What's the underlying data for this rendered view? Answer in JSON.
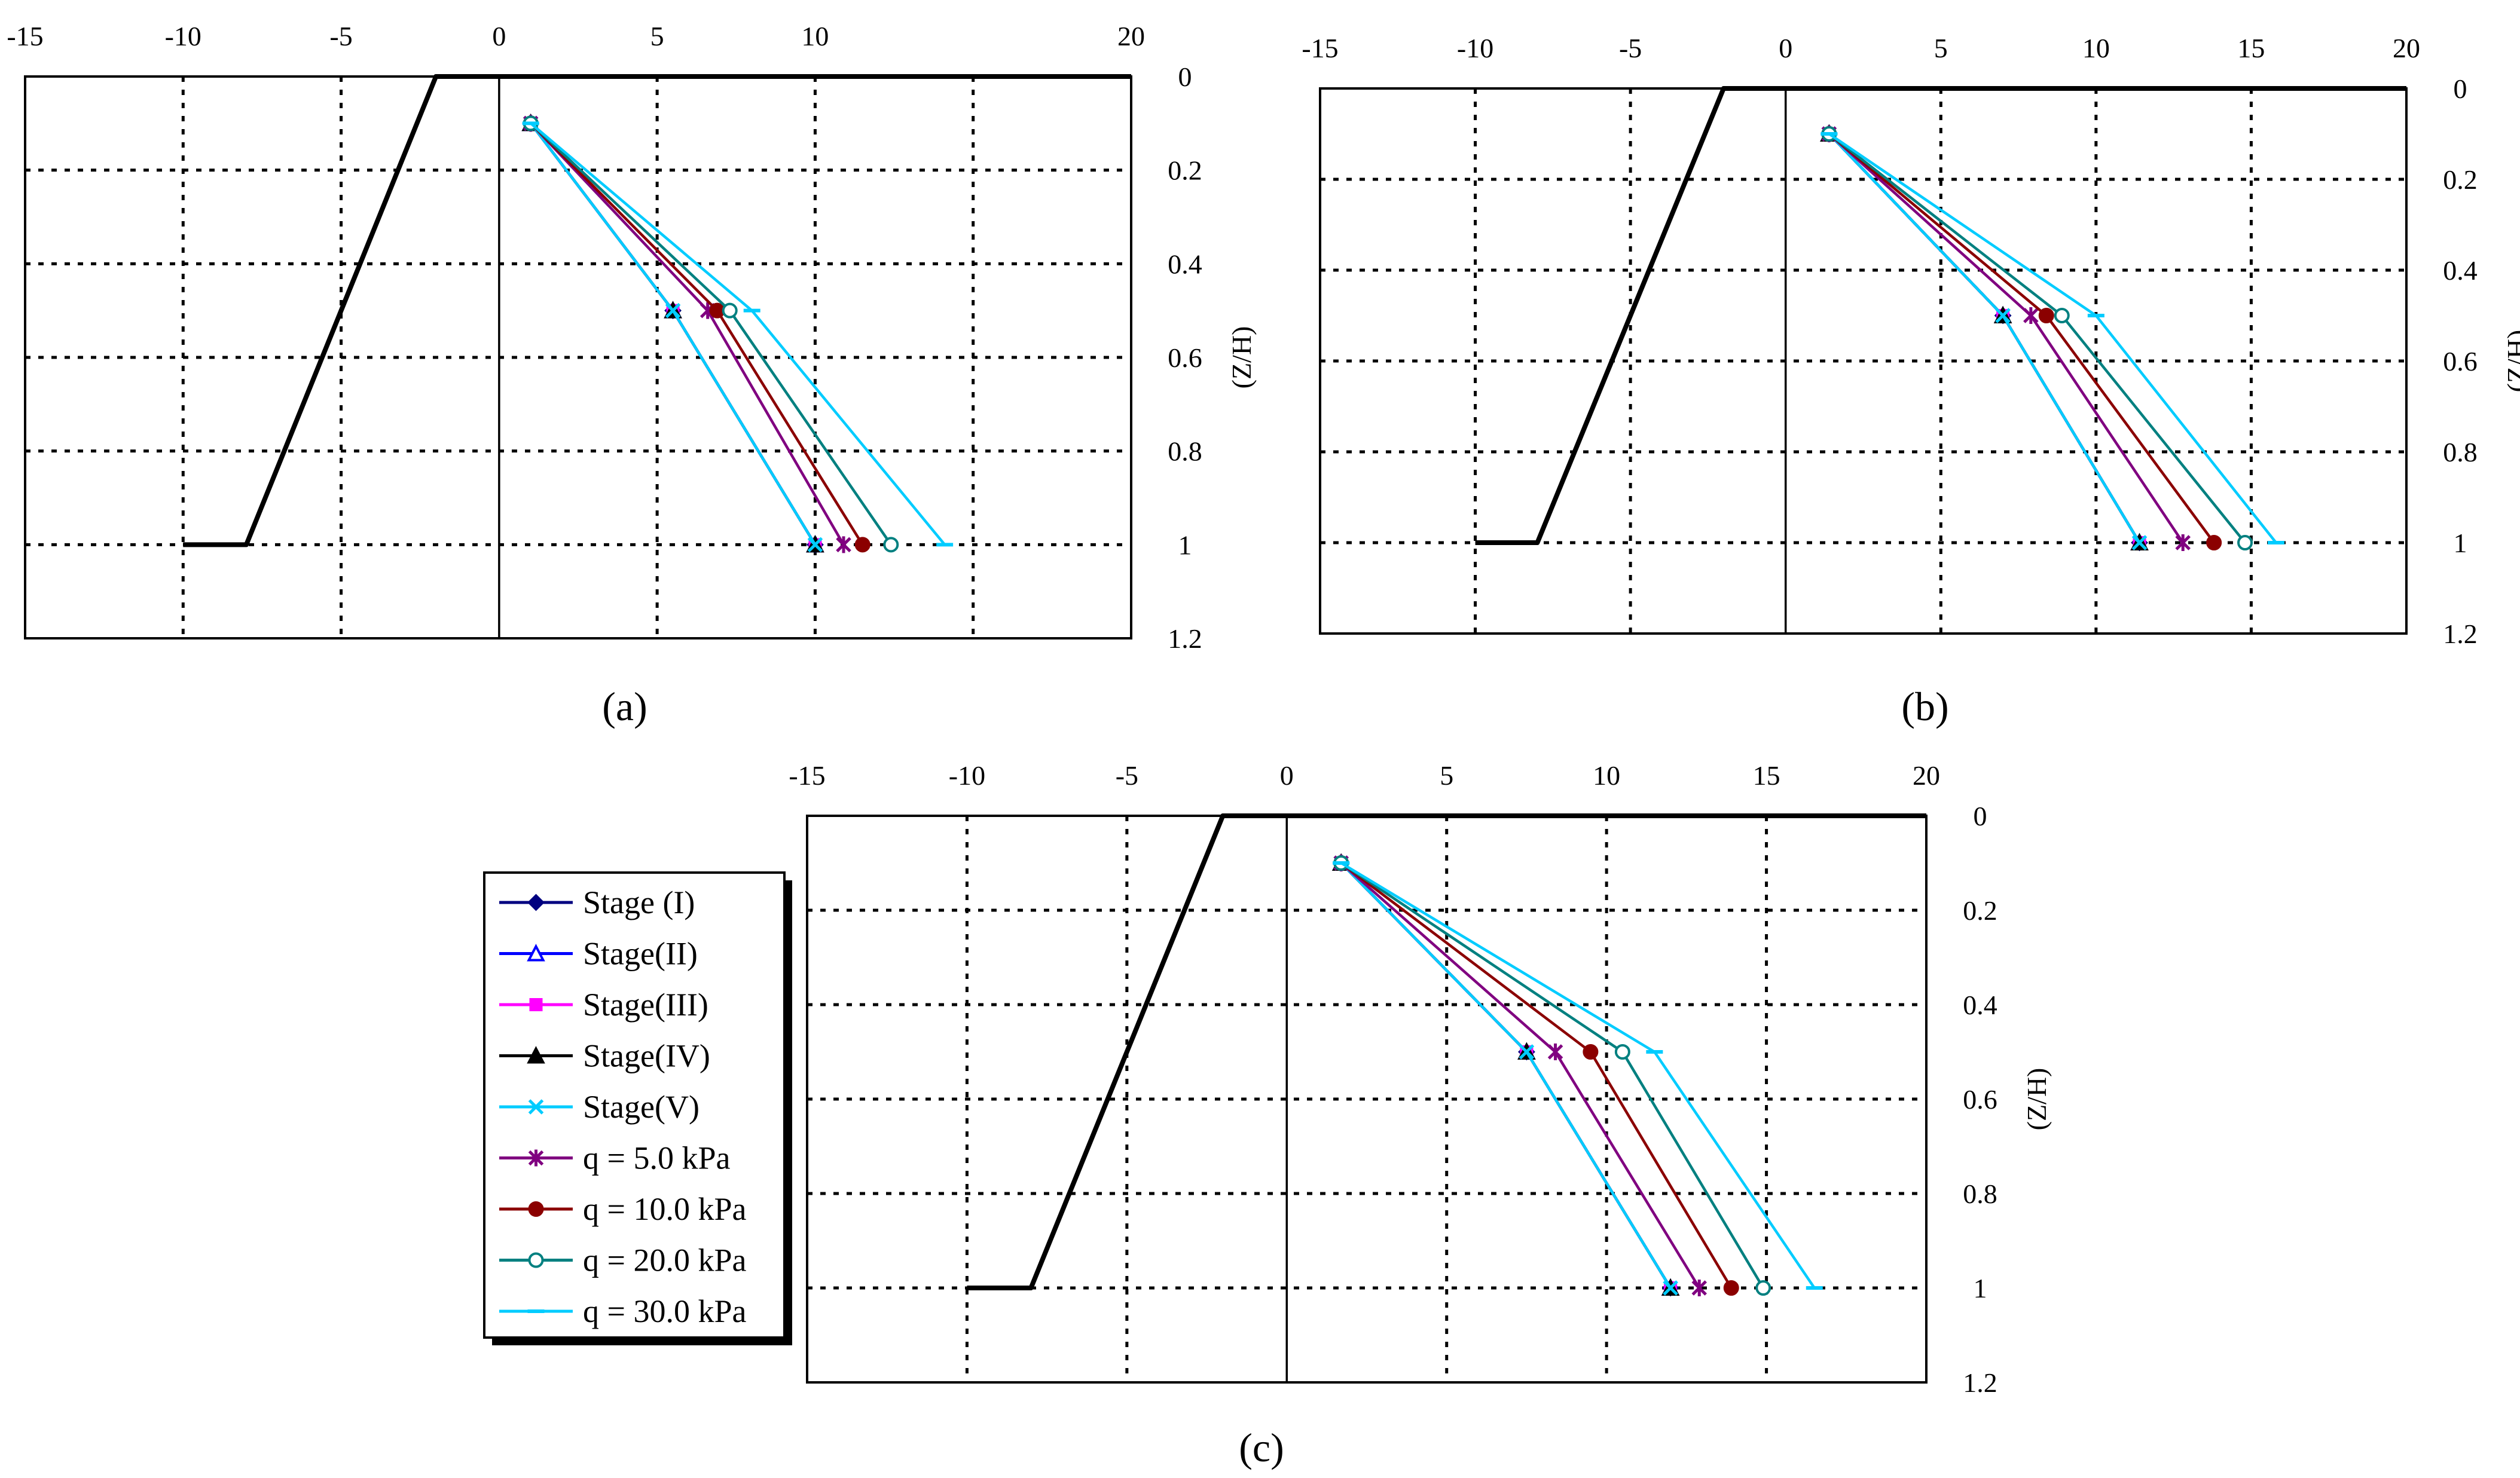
{
  "panel_labels": [
    "(a)",
    "(b)",
    "(c)"
  ],
  "legend": {
    "items": [
      {
        "label": "Stage (I)",
        "color": "#000080",
        "marker": "diamond"
      },
      {
        "label": "Stage(II)",
        "color": "#0000FF",
        "marker": "triangle-open"
      },
      {
        "label": "Stage(III)",
        "color": "#FF00FF",
        "marker": "square"
      },
      {
        "label": "Stage(IV)",
        "color": "#000000",
        "marker": "triangle"
      },
      {
        "label": "Stage(V)",
        "color": "#00CCFF",
        "marker": "x"
      },
      {
        "label": "q = 5.0 kPa",
        "color": "#800080",
        "marker": "star"
      },
      {
        "label": "q = 10.0 kPa",
        "color": "#8B0000",
        "marker": "circle"
      },
      {
        "label": "q = 20.0 kPa",
        "color": "#008080",
        "marker": "circle-open"
      },
      {
        "label": "q = 30.0 kPa",
        "color": "#00CCFF",
        "marker": "dash"
      }
    ]
  },
  "chart_data": [
    {
      "type": "line",
      "panel": "(a)",
      "xlabel": "",
      "ylabel": "(Z/H)",
      "xlim": [
        -15,
        20
      ],
      "ylim": [
        0,
        1.2
      ],
      "x_ticks": [
        "-15",
        "-10",
        "-5",
        "0",
        "5",
        "10",
        "20"
      ],
      "y_ticks": [
        "0",
        "0.2",
        "0.4",
        "0.6",
        "0.8",
        "1",
        "1.2"
      ],
      "wall_outline": {
        "x": [
          20,
          -2,
          -8,
          -10
        ],
        "z": [
          0,
          0,
          1,
          1
        ]
      },
      "series": [
        {
          "name": "Stage (I)",
          "x": [
            1,
            5.5,
            10
          ],
          "z": [
            0.1,
            0.5,
            1.0
          ]
        },
        {
          "name": "Stage(II)",
          "x": [
            1,
            5.5,
            10
          ],
          "z": [
            0.1,
            0.5,
            1.0
          ]
        },
        {
          "name": "Stage(III)",
          "x": [
            1,
            5.5,
            10
          ],
          "z": [
            0.1,
            0.5,
            1.0
          ]
        },
        {
          "name": "Stage(IV)",
          "x": [
            1,
            5.5,
            10
          ],
          "z": [
            0.1,
            0.5,
            1.0
          ]
        },
        {
          "name": "Stage(V)",
          "x": [
            1,
            5.5,
            10
          ],
          "z": [
            0.1,
            0.5,
            1.0
          ]
        },
        {
          "name": "q = 5.0 kPa",
          "x": [
            1,
            6.6,
            10.9
          ],
          "z": [
            0.1,
            0.5,
            1.0
          ]
        },
        {
          "name": "q = 10.0 kPa",
          "x": [
            1,
            6.9,
            11.5
          ],
          "z": [
            0.1,
            0.5,
            1.0
          ]
        },
        {
          "name": "q = 20.0 kPa",
          "x": [
            1,
            7.3,
            12.4
          ],
          "z": [
            0.1,
            0.5,
            1.0
          ]
        },
        {
          "name": "q = 30.0 kPa",
          "x": [
            1,
            8.0,
            14.1
          ],
          "z": [
            0.1,
            0.5,
            1.0
          ]
        }
      ]
    },
    {
      "type": "line",
      "panel": "(b)",
      "xlabel": "",
      "ylabel": "(Z/H)",
      "xlim": [
        -15,
        20
      ],
      "ylim": [
        0,
        1.2
      ],
      "x_ticks": [
        "-15",
        "-10",
        "-5",
        "0",
        "5",
        "10",
        "15",
        "20"
      ],
      "y_ticks": [
        "0",
        "0.2",
        "0.4",
        "0.6",
        "0.8",
        "1",
        "1.2"
      ],
      "wall_outline": {
        "x": [
          20,
          -2,
          -8,
          -10
        ],
        "z": [
          0,
          0,
          1,
          1
        ]
      },
      "series": [
        {
          "name": "Stage (I)",
          "x": [
            1.4,
            7.0,
            11.4
          ],
          "z": [
            0.1,
            0.5,
            1.0
          ]
        },
        {
          "name": "Stage(II)",
          "x": [
            1.4,
            7.0,
            11.4
          ],
          "z": [
            0.1,
            0.5,
            1.0
          ]
        },
        {
          "name": "Stage(III)",
          "x": [
            1.4,
            7.0,
            11.4
          ],
          "z": [
            0.1,
            0.5,
            1.0
          ]
        },
        {
          "name": "Stage(IV)",
          "x": [
            1.4,
            7.0,
            11.4
          ],
          "z": [
            0.1,
            0.5,
            1.0
          ]
        },
        {
          "name": "Stage(V)",
          "x": [
            1.4,
            7.0,
            11.4
          ],
          "z": [
            0.1,
            0.5,
            1.0
          ]
        },
        {
          "name": "q = 5.0 kPa",
          "x": [
            1.4,
            7.9,
            12.8
          ],
          "z": [
            0.1,
            0.5,
            1.0
          ]
        },
        {
          "name": "q = 10.0 kPa",
          "x": [
            1.4,
            8.4,
            13.8
          ],
          "z": [
            0.1,
            0.5,
            1.0
          ]
        },
        {
          "name": "q = 20.0 kPa",
          "x": [
            1.4,
            8.9,
            14.8
          ],
          "z": [
            0.1,
            0.5,
            1.0
          ]
        },
        {
          "name": "q = 30.0 kPa",
          "x": [
            1.4,
            10.0,
            15.8
          ],
          "z": [
            0.1,
            0.5,
            1.0
          ]
        }
      ]
    },
    {
      "type": "line",
      "panel": "(c)",
      "xlabel": "",
      "ylabel": "(Z/H)",
      "xlim": [
        -15,
        20
      ],
      "ylim": [
        0,
        1.2
      ],
      "x_ticks": [
        "-15",
        "-10",
        "-5",
        "0",
        "5",
        "10",
        "15",
        "20"
      ],
      "y_ticks": [
        "0",
        "0.2",
        "0.4",
        "0.6",
        "0.8",
        "1",
        "1.2"
      ],
      "wall_outline": {
        "x": [
          20,
          -2,
          -8,
          -10
        ],
        "z": [
          0,
          0,
          1,
          1
        ]
      },
      "series": [
        {
          "name": "Stage (I)",
          "x": [
            1.7,
            7.5,
            12.0
          ],
          "z": [
            0.1,
            0.5,
            1.0
          ]
        },
        {
          "name": "Stage(II)",
          "x": [
            1.7,
            7.5,
            12.0
          ],
          "z": [
            0.1,
            0.5,
            1.0
          ]
        },
        {
          "name": "Stage(III)",
          "x": [
            1.7,
            7.5,
            12.0
          ],
          "z": [
            0.1,
            0.5,
            1.0
          ]
        },
        {
          "name": "Stage(IV)",
          "x": [
            1.7,
            7.5,
            12.0
          ],
          "z": [
            0.1,
            0.5,
            1.0
          ]
        },
        {
          "name": "Stage(V)",
          "x": [
            1.7,
            7.5,
            12.0
          ],
          "z": [
            0.1,
            0.5,
            1.0
          ]
        },
        {
          "name": "q = 5.0 kPa",
          "x": [
            1.7,
            8.4,
            12.9
          ],
          "z": [
            0.1,
            0.5,
            1.0
          ]
        },
        {
          "name": "q = 10.0 kPa",
          "x": [
            1.7,
            9.5,
            13.9
          ],
          "z": [
            0.1,
            0.5,
            1.0
          ]
        },
        {
          "name": "q = 20.0 kPa",
          "x": [
            1.7,
            10.5,
            14.9
          ],
          "z": [
            0.1,
            0.5,
            1.0
          ]
        },
        {
          "name": "q = 30.0 kPa",
          "x": [
            1.7,
            11.5,
            16.5
          ],
          "z": [
            0.1,
            0.5,
            1.0
          ]
        }
      ]
    }
  ]
}
